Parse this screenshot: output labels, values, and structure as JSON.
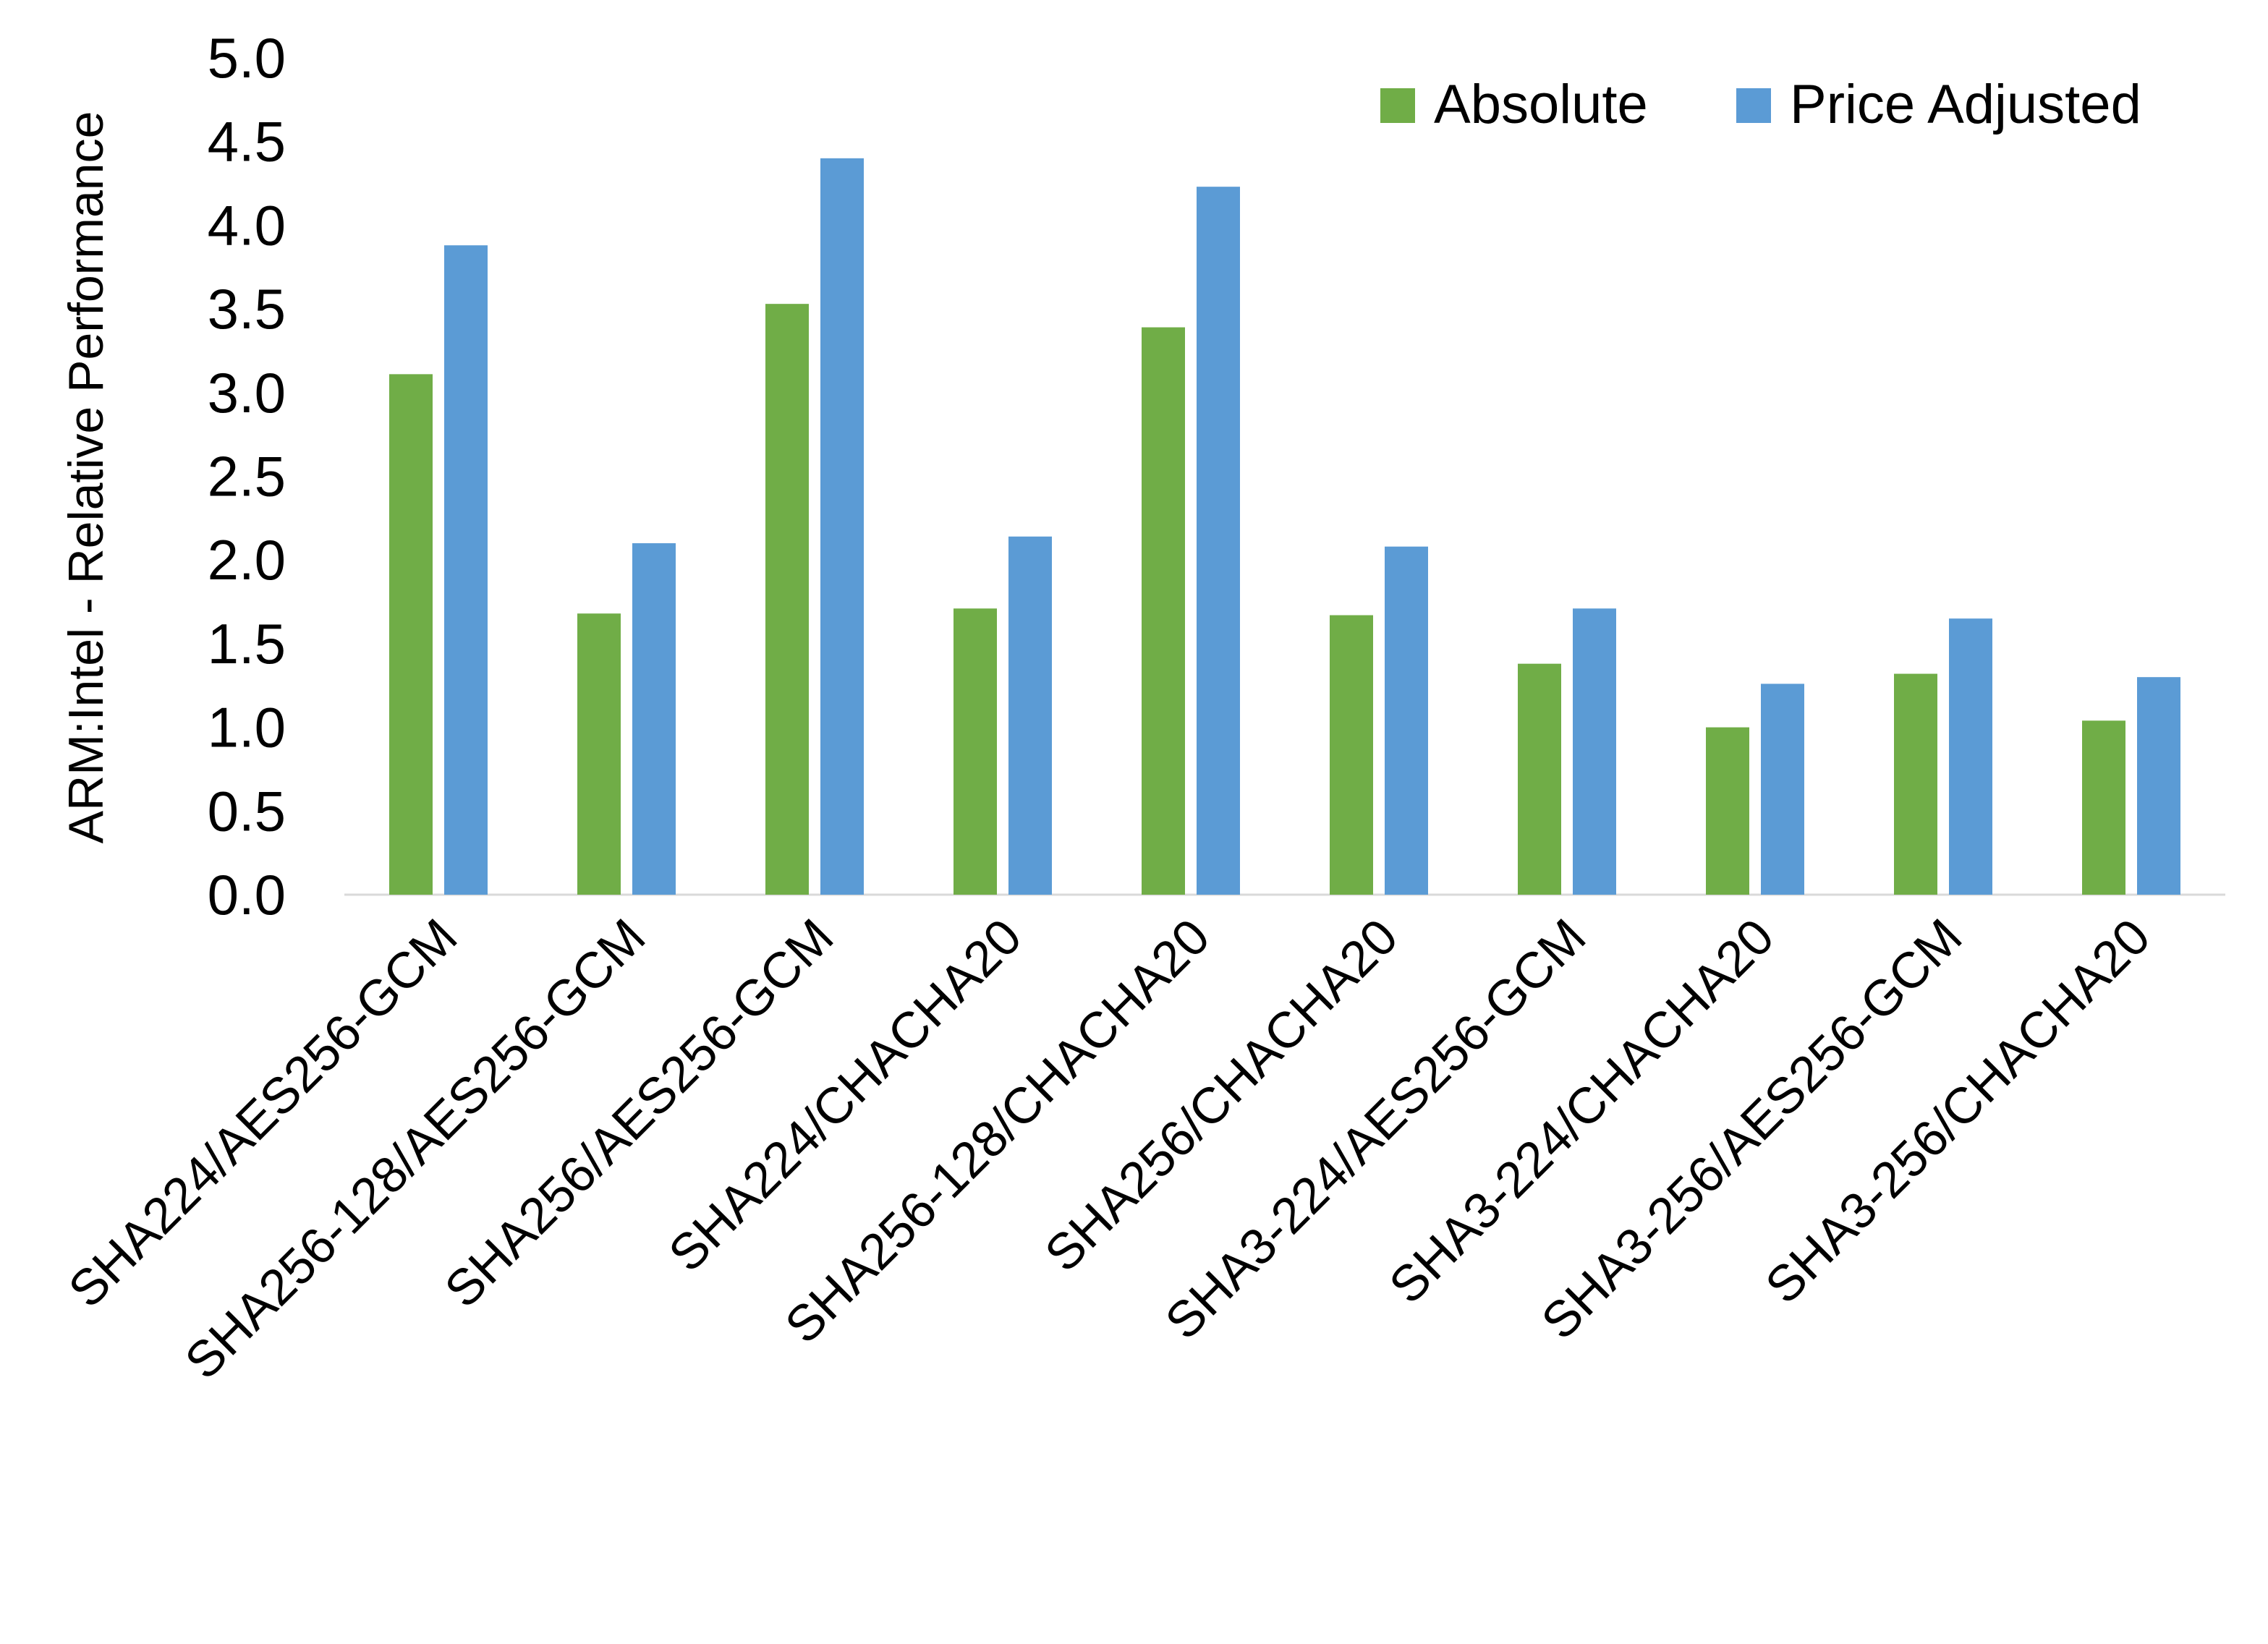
{
  "chart_data": {
    "type": "bar",
    "title": "",
    "xlabel": "",
    "ylabel": "ARM:Intel - Relative Performance",
    "ylim": [
      0,
      5
    ],
    "yticks": [
      "0.0",
      "0.5",
      "1.0",
      "1.5",
      "2.0",
      "2.5",
      "3.0",
      "3.5",
      "4.0",
      "4.5",
      "5.0"
    ],
    "grid": false,
    "legend_position": "top-right",
    "categories": [
      "SHA224/AES256-GCM",
      "SHA256-128/AES256-GCM",
      "SHA256/AES256-GCM",
      "SHA224/CHACHA20",
      "SHA256-128/CHACHA20",
      "SHA256/CHACHA20",
      "SHA3-224/AES256-GCM",
      "SHA3-224/CHACHA20",
      "SHA3-256/AES256-GCM",
      "SHA3-256/CHACHA20"
    ],
    "series": [
      {
        "name": "Absolute",
        "color": "#70AD47",
        "values": [
          3.11,
          1.68,
          3.53,
          1.71,
          3.39,
          1.67,
          1.38,
          1.0,
          1.32,
          1.04
        ]
      },
      {
        "name": "Price Adjusted",
        "color": "#5B9BD5",
        "values": [
          3.88,
          2.1,
          4.4,
          2.14,
          4.23,
          2.08,
          1.71,
          1.26,
          1.65,
          1.3
        ]
      }
    ]
  }
}
